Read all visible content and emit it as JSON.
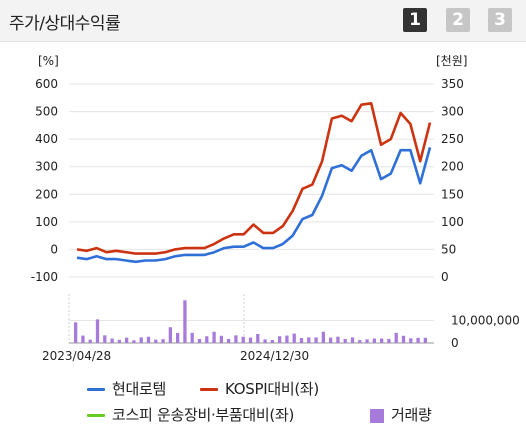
{
  "header": {
    "title": "주가/상대수익률",
    "tabs": [
      "1",
      "2",
      "3"
    ]
  },
  "chart_data": {
    "type": "line",
    "left_unit": "[%]",
    "right_unit": "[천원]",
    "left_ticks": [
      "600",
      "500",
      "400",
      "300",
      "200",
      "100",
      "0",
      "-100"
    ],
    "right_ticks": [
      "350",
      "300",
      "250",
      "200",
      "150",
      "100",
      "50",
      "0"
    ],
    "left_range": [
      -100,
      600
    ],
    "right_range": [
      0,
      350
    ],
    "volume_tick_labels": [
      "10,000,000",
      "0"
    ],
    "volume_range": [
      0,
      20000000
    ],
    "x_labels": [
      "2023/04/28",
      "2024/12/30"
    ],
    "series": [
      {
        "name": "현대로템",
        "axis": "left",
        "color": "#2f6fd8",
        "values": [
          -30,
          -35,
          -25,
          -35,
          -35,
          -40,
          -45,
          -40,
          -40,
          -35,
          -25,
          -20,
          -20,
          -20,
          -10,
          5,
          10,
          10,
          25,
          5,
          5,
          20,
          50,
          110,
          125,
          195,
          295,
          305,
          285,
          340,
          360,
          255,
          275,
          360,
          360,
          240,
          370
        ]
      },
      {
        "name": "KOSPI대비(좌)",
        "axis": "left",
        "color": "#cc3311",
        "values": [
          0,
          -5,
          5,
          -10,
          -5,
          -10,
          -15,
          -15,
          -15,
          -10,
          0,
          5,
          5,
          5,
          20,
          40,
          55,
          55,
          90,
          60,
          60,
          85,
          140,
          220,
          235,
          320,
          475,
          485,
          465,
          525,
          530,
          380,
          400,
          495,
          455,
          320,
          460
        ]
      },
      {
        "name": "코스피 운송장비·부품대비(좌)",
        "axis": "left",
        "color": "#66cc22",
        "values": []
      }
    ],
    "volume": {
      "name": "거래량",
      "color": "#a77bdb",
      "values": [
        9200000,
        3300000,
        1500000,
        10500000,
        3400000,
        2000000,
        1400000,
        2400000,
        1200000,
        2500000,
        2800000,
        1500000,
        1700000,
        7000000,
        4500000,
        19000000,
        4500000,
        1800000,
        3000000,
        5000000,
        3200000,
        1800000,
        3400000,
        2800000,
        2400000,
        4000000,
        1600000,
        1300000,
        3000000,
        3300000,
        4200000,
        2200000,
        2500000,
        2500000,
        5000000,
        2400000,
        2800000,
        1800000,
        2500000,
        1300000,
        1600000,
        2000000,
        2000000,
        1800000,
        4500000,
        3200000,
        2100000,
        2300000,
        2300000
      ]
    }
  }
}
